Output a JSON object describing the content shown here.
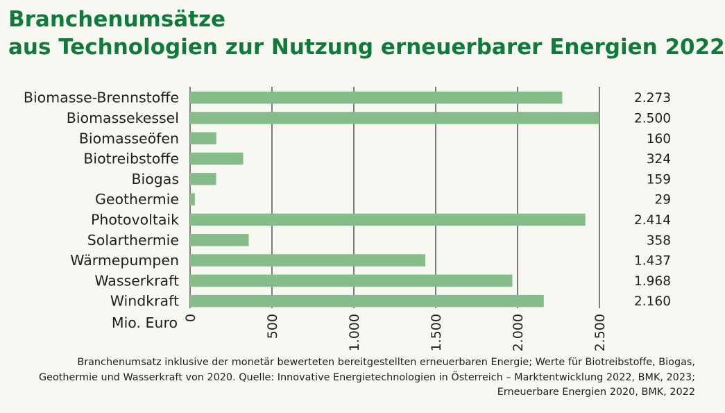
{
  "title": {
    "line1": "Branchenumsätze",
    "line2": "aus Technologien zur Nutzung erneuerbarer Energien 2022"
  },
  "colors": {
    "title": "#0f7a3a",
    "bar": "#86bb8a",
    "grid": "#2a2a2a",
    "background": "#f7f8f2"
  },
  "chart_data": {
    "type": "bar",
    "orientation": "horizontal",
    "categories": [
      "Biomasse-Brennstoffe",
      "Biomassekessel",
      "Biomasseöfen",
      "Biotreibstoffe",
      "Biogas",
      "Geothermie",
      "Photovoltaik",
      "Solarthermie",
      "Wärmepumpen",
      "Wasserkraft",
      "Windkraft"
    ],
    "values": [
      2273,
      2500,
      160,
      324,
      159,
      29,
      2414,
      358,
      1437,
      1968,
      2160
    ],
    "value_labels": [
      "2.273",
      "2.500",
      "160",
      "324",
      "159",
      "29",
      "2.414",
      "358",
      "1.437",
      "1.968",
      "2.160"
    ],
    "xlabel": "Mio. Euro",
    "xlim": [
      0,
      2500
    ],
    "ticks": [
      0,
      500,
      1000,
      1500,
      2000,
      2500
    ],
    "tick_labels": [
      "0",
      "500",
      "1.000",
      "1.500",
      "2.000",
      "2.500"
    ],
    "grid": true
  },
  "footnote": {
    "line1": "Branchenumsatz inklusive der monetär bewerteten bereitgestellten erneuerbaren Energie; Werte für Biotreibstoffe, Biogas,",
    "line2": "Geothermie und Wasserkraft von 2020. Quelle: Innovative Energietechnologien in Österreich – Marktentwicklung 2022, BMK, 2023;",
    "line3": "Erneuerbare Energien 2020, BMK, 2022"
  }
}
